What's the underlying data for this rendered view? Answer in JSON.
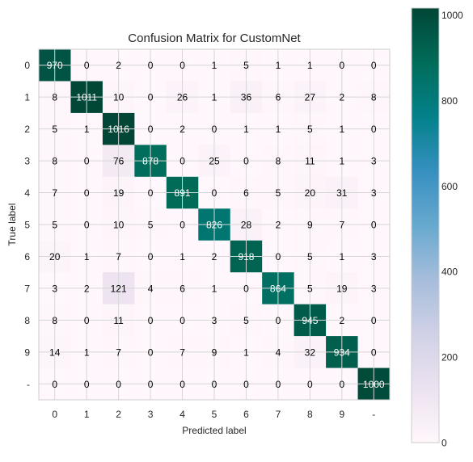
{
  "chart_data": {
    "type": "heatmap",
    "title": "Confusion Matrix for CustomNet",
    "xlabel": "Predicted label",
    "ylabel": "True label",
    "x_categories": [
      "0",
      "1",
      "2",
      "3",
      "4",
      "5",
      "6",
      "7",
      "8",
      "9",
      "-"
    ],
    "y_categories": [
      "0",
      "1",
      "2",
      "3",
      "4",
      "5",
      "6",
      "7",
      "8",
      "9",
      "-"
    ],
    "matrix": [
      [
        970,
        0,
        2,
        0,
        0,
        1,
        5,
        1,
        1,
        0,
        0
      ],
      [
        8,
        1011,
        10,
        0,
        26,
        1,
        36,
        6,
        27,
        2,
        8
      ],
      [
        5,
        1,
        1016,
        0,
        2,
        0,
        1,
        1,
        5,
        1,
        0
      ],
      [
        8,
        0,
        76,
        878,
        0,
        25,
        0,
        8,
        11,
        1,
        3
      ],
      [
        7,
        0,
        19,
        0,
        891,
        0,
        6,
        5,
        20,
        31,
        3
      ],
      [
        5,
        0,
        10,
        5,
        0,
        826,
        28,
        2,
        9,
        7,
        0
      ],
      [
        20,
        1,
        7,
        0,
        1,
        2,
        918,
        0,
        5,
        1,
        3
      ],
      [
        3,
        2,
        121,
        4,
        6,
        1,
        0,
        864,
        5,
        19,
        3
      ],
      [
        8,
        0,
        11,
        0,
        0,
        3,
        5,
        0,
        945,
        2,
        0
      ],
      [
        14,
        1,
        7,
        0,
        7,
        9,
        1,
        4,
        32,
        934,
        0
      ],
      [
        0,
        0,
        0,
        0,
        0,
        0,
        0,
        0,
        0,
        0,
        1000
      ]
    ],
    "colormap": "PuBuGn",
    "colorbar": {
      "range": [
        0,
        1016
      ],
      "ticks": [
        0,
        200,
        400,
        600,
        800,
        1000
      ]
    },
    "grid": true,
    "text_color_low": "#000000",
    "text_color_high": "#ffffff"
  }
}
